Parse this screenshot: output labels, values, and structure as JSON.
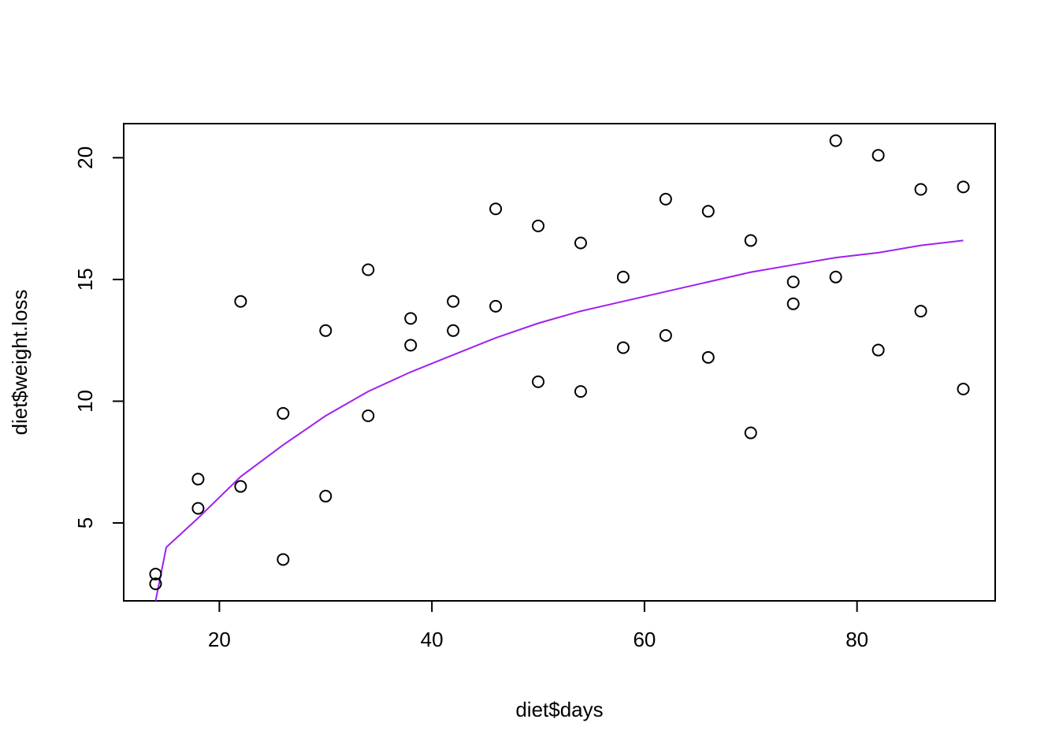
{
  "chart_data": {
    "type": "scatter",
    "title": "",
    "xlabel": "diet$days",
    "ylabel": "diet$weight.loss",
    "xlim": [
      11,
      93
    ],
    "ylim": [
      1.8,
      21.4
    ],
    "xticks": [
      20,
      40,
      60,
      80
    ],
    "yticks": [
      5,
      10,
      15,
      20
    ],
    "grid": false,
    "legend": "none",
    "point_color": "#000000",
    "curve_color": "#a020f0",
    "points": [
      [
        14,
        2.9
      ],
      [
        14,
        2.5
      ],
      [
        18,
        6.8
      ],
      [
        18,
        5.6
      ],
      [
        22,
        14.1
      ],
      [
        22,
        6.5
      ],
      [
        26,
        9.5
      ],
      [
        26,
        3.5
      ],
      [
        30,
        12.9
      ],
      [
        30,
        6.1
      ],
      [
        34,
        15.4
      ],
      [
        34,
        9.4
      ],
      [
        38,
        13.4
      ],
      [
        38,
        12.3
      ],
      [
        42,
        14.1
      ],
      [
        42,
        12.9
      ],
      [
        46,
        17.9
      ],
      [
        46,
        13.9
      ],
      [
        50,
        17.2
      ],
      [
        50,
        10.8
      ],
      [
        54,
        16.5
      ],
      [
        54,
        10.4
      ],
      [
        58,
        15.1
      ],
      [
        58,
        12.2
      ],
      [
        62,
        18.3
      ],
      [
        62,
        12.7
      ],
      [
        66,
        17.8
      ],
      [
        66,
        11.8
      ],
      [
        70,
        16.6
      ],
      [
        70,
        8.7
      ],
      [
        74,
        14.9
      ],
      [
        74,
        14.0
      ],
      [
        78,
        20.7
      ],
      [
        78,
        15.1
      ],
      [
        82,
        20.1
      ],
      [
        82,
        12.1
      ],
      [
        86,
        18.7
      ],
      [
        86,
        13.7
      ],
      [
        90,
        18.8
      ],
      [
        90,
        10.5
      ]
    ],
    "fit_curve": {
      "x": [
        14,
        15,
        18,
        22,
        26,
        30,
        34,
        38,
        42,
        46,
        50,
        54,
        58,
        62,
        66,
        70,
        74,
        78,
        82,
        86,
        90
      ],
      "y": [
        1.8,
        4.0,
        5.2,
        6.9,
        8.2,
        9.4,
        10.4,
        11.2,
        11.9,
        12.6,
        13.2,
        13.7,
        14.1,
        14.5,
        14.9,
        15.3,
        15.6,
        15.9,
        16.1,
        16.4,
        16.6
      ]
    }
  }
}
